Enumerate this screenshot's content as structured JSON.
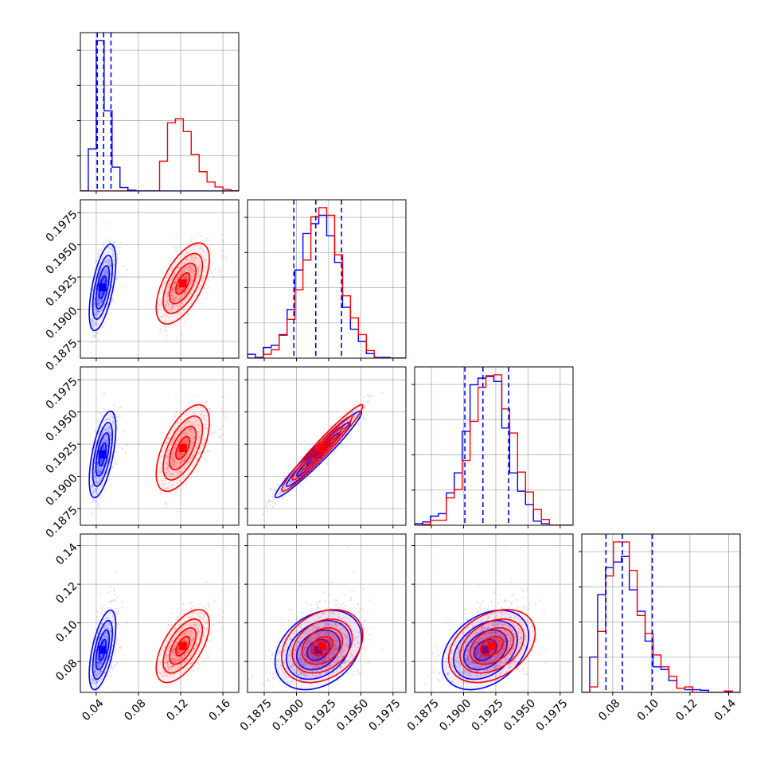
{
  "chart_data": {
    "type": "corner",
    "parameters": [
      {
        "range": [
          0.025,
          0.175
        ],
        "ticks": [
          0.04,
          0.08,
          0.12,
          0.16
        ],
        "tick_labels": [
          "0.04",
          "0.08",
          "0.12",
          "0.16"
        ]
      },
      {
        "range": [
          0.1862,
          0.1985
        ],
        "ticks": [
          0.1875,
          0.19,
          0.1925,
          0.195,
          0.1975
        ],
        "tick_labels": [
          "0.1875",
          "0.1900",
          "0.1925",
          "0.1950",
          "0.1975"
        ]
      },
      {
        "range": [
          0.1862,
          0.1985
        ],
        "ticks": [
          0.1875,
          0.19,
          0.1925,
          0.195,
          0.1975
        ],
        "tick_labels": [
          "0.1875",
          "0.1900",
          "0.1925",
          "0.1950",
          "0.1975"
        ]
      },
      {
        "range": [
          0.064,
          0.146
        ],
        "ticks": [
          0.08,
          0.1,
          0.12,
          0.14
        ],
        "tick_labels": [
          "0.08",
          "0.10",
          "0.12",
          "0.14"
        ]
      }
    ],
    "series": [
      {
        "color": "#0000ff",
        "mean": [
          0.046,
          0.1917,
          0.1917,
          0.086
        ],
        "std": [
          0.006,
          0.0016,
          0.0016,
          0.0098
        ],
        "quantiles": [
          [
            0.041,
            0.047,
            0.054
          ],
          [
            0.1898,
            0.1915,
            0.1935
          ],
          [
            0.1901,
            0.1915,
            0.1935
          ],
          [
            0.0765,
            0.085,
            0.1005
          ]
        ]
      },
      {
        "color": "#ff0000",
        "mean": [
          0.122,
          0.192,
          0.1922,
          0.088
        ],
        "std": [
          0.012,
          0.0015,
          0.0016,
          0.009
        ]
      }
    ],
    "grid": true
  }
}
